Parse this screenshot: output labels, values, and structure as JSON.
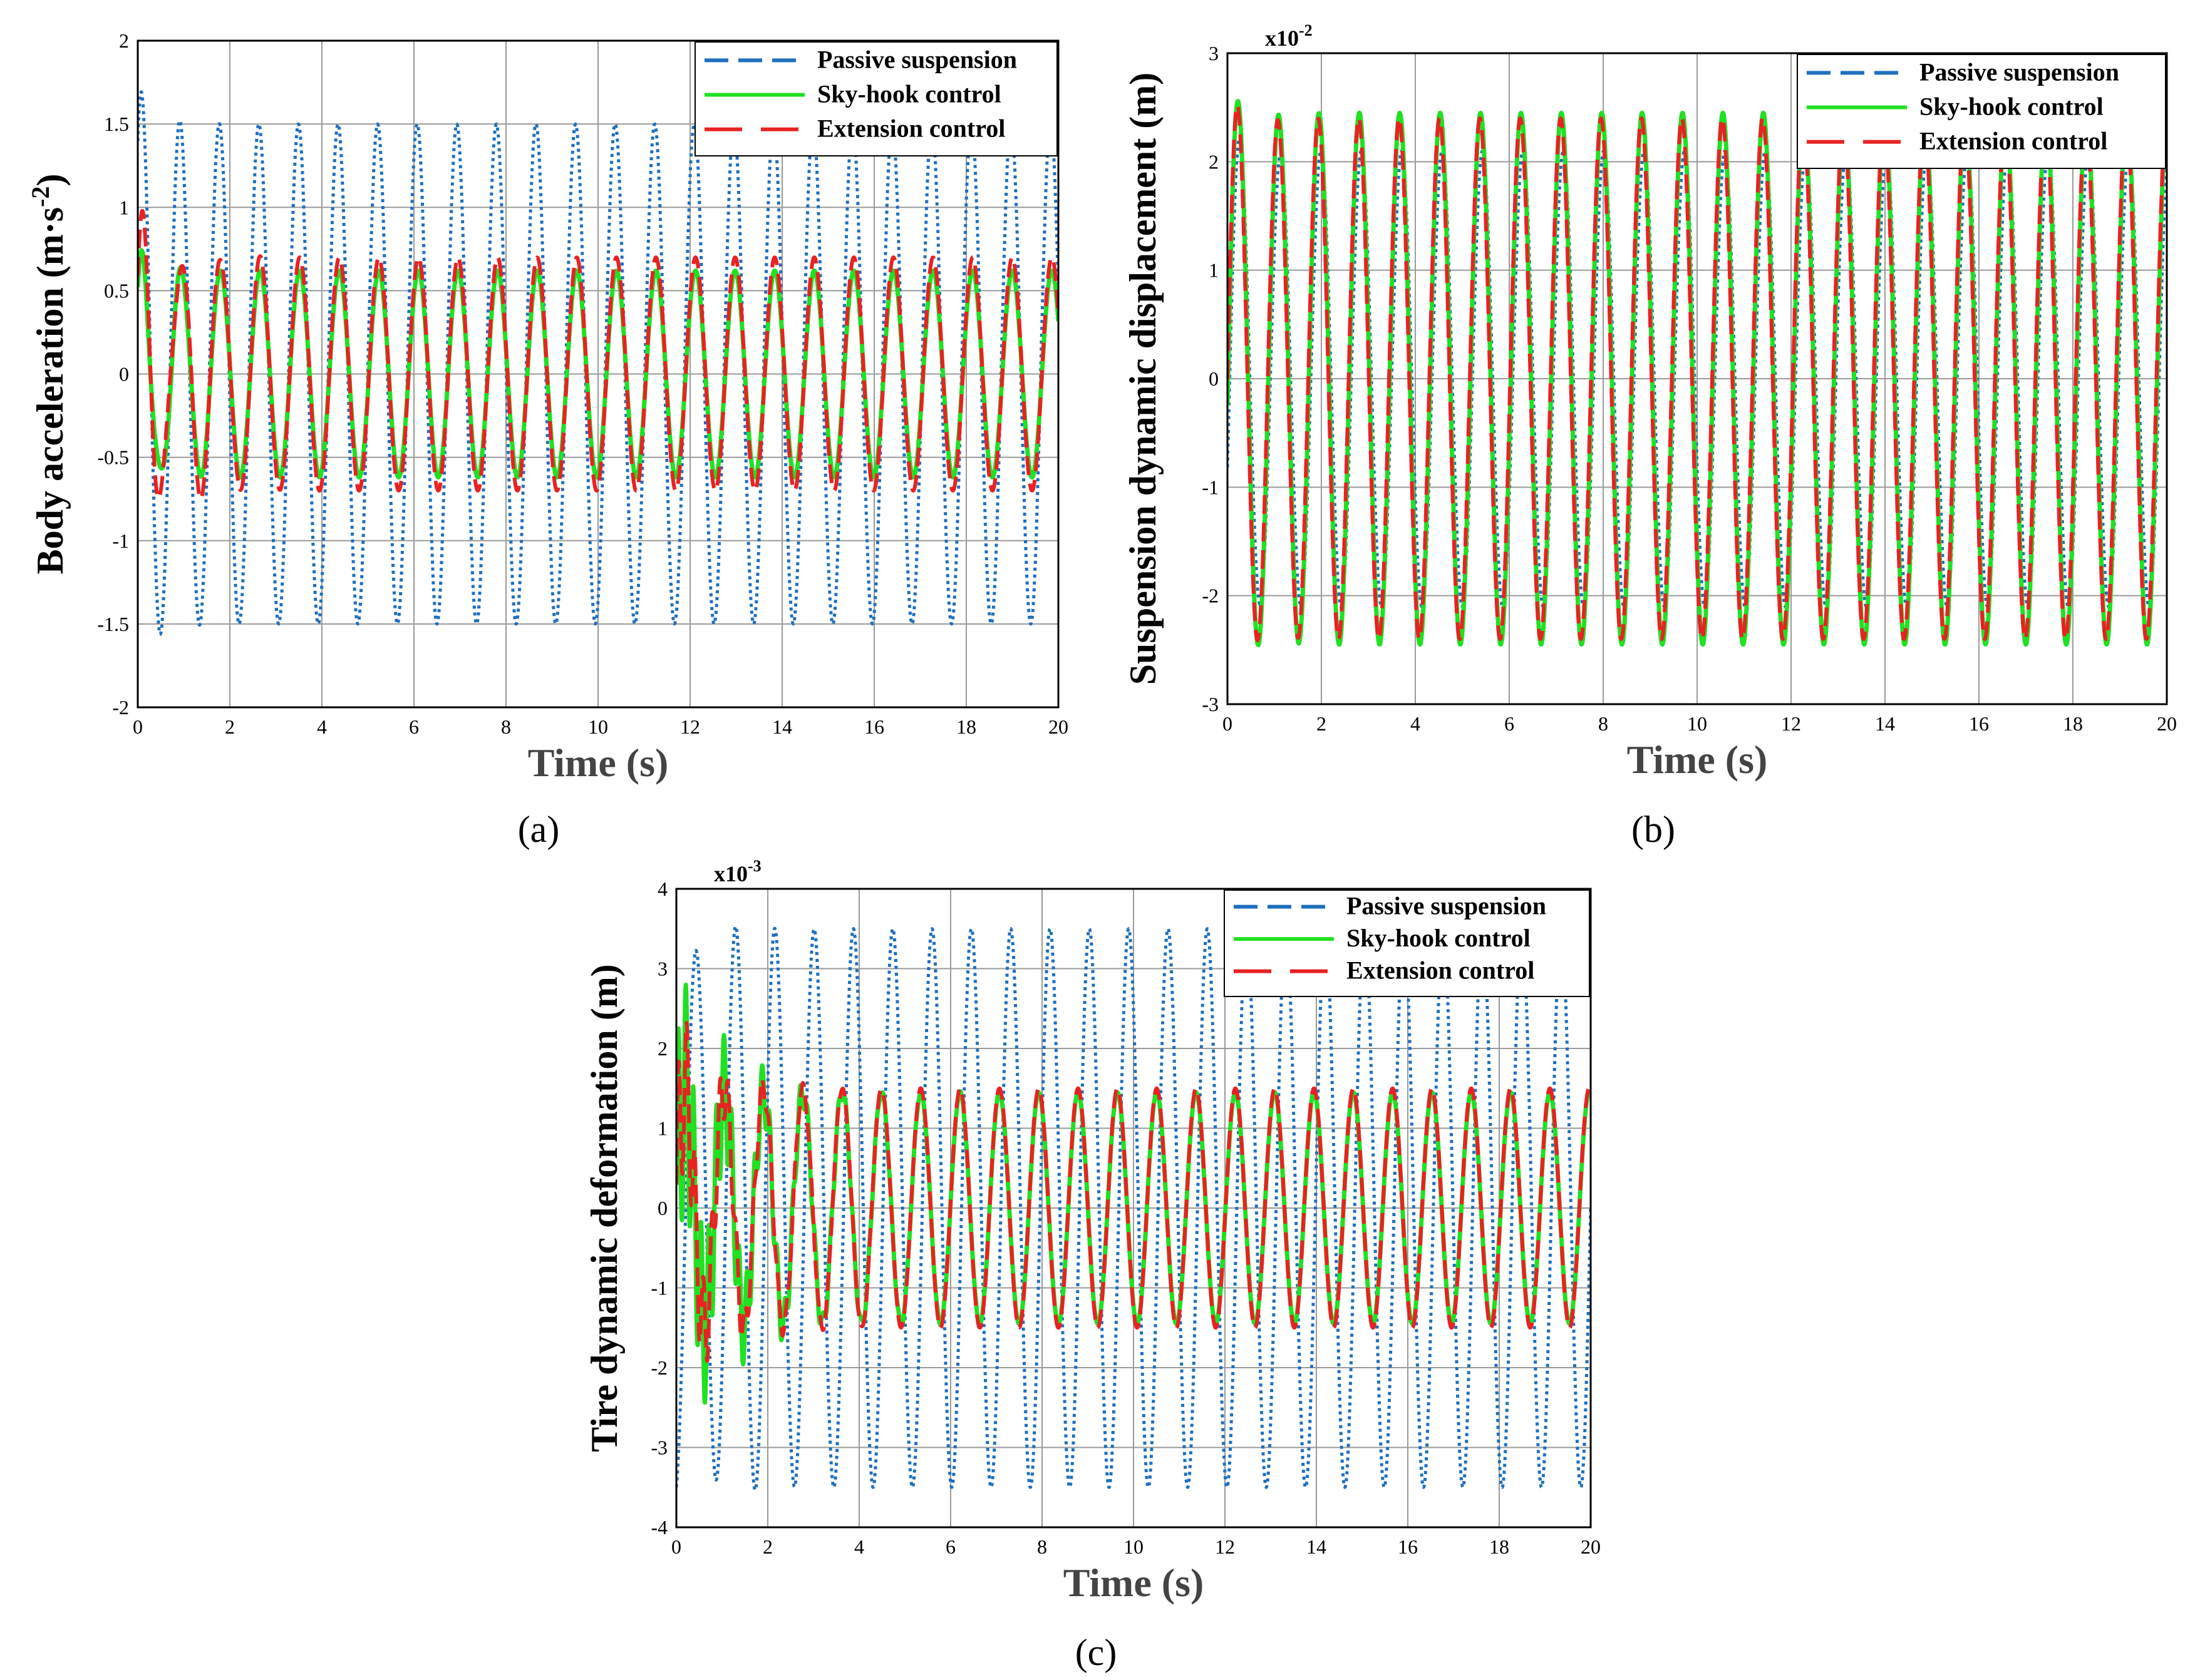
{
  "series_styles": [
    {
      "name": "Passive suspension",
      "color": "#1f6fbf",
      "dash": "5,6",
      "width": 5
    },
    {
      "name": "Sky-hook control",
      "color": "#22e022",
      "dash": "",
      "width": 7
    },
    {
      "name": "Extension control",
      "color": "#e82222",
      "dash": "30,14",
      "width": 6
    }
  ],
  "chart_data": [
    {
      "id": "a",
      "type": "line",
      "caption": "(a)",
      "xlabel": "Time (s)",
      "ylabel_main": "Body acceleration (m·s",
      "ylabel_sup": "-2",
      "ylabel_end": ")",
      "multiplier_base": "",
      "multiplier_exp": "",
      "xlim": [
        0,
        20
      ],
      "ylim": [
        -2,
        2
      ],
      "xticks": [
        0,
        2,
        4,
        6,
        8,
        10,
        12,
        14,
        16,
        18,
        20
      ],
      "yticks": [
        -2,
        -1.5,
        -1,
        -0.5,
        0,
        0.5,
        1,
        1.5,
        2
      ],
      "xtick_labels": [
        "0",
        "2",
        "4",
        "6",
        "8",
        "10",
        "12",
        "14",
        "16",
        "18",
        "20"
      ],
      "ytick_labels": [
        "-2",
        "-1.5",
        "-1",
        "-0.5",
        "0",
        "0.5",
        "1",
        "1.5",
        "2"
      ],
      "legend_position": "top-right",
      "series": [
        {
          "name": "Passive suspension",
          "amplitude": 1.5,
          "period_s": 0.86,
          "phase_rad": 1.2,
          "transient_amp": 0.5,
          "transient_decay_s": 0.35,
          "transient_freq_hz": 1.2
        },
        {
          "name": "Sky-hook control",
          "amplitude": 0.62,
          "period_s": 0.86,
          "phase_rad": 1.0,
          "transient_amp": 0.15,
          "transient_decay_s": 0.5,
          "transient_freq_hz": 2.5
        },
        {
          "name": "Extension control",
          "amplitude": 0.7,
          "period_s": 0.86,
          "phase_rad": 1.0,
          "transient_amp": 0.35,
          "transient_decay_s": 0.7,
          "transient_freq_hz": 2.0
        }
      ]
    },
    {
      "id": "b",
      "type": "line",
      "caption": "(b)",
      "xlabel": "Time (s)",
      "ylabel_main": "Suspension dynamic displacement (m)",
      "ylabel_sup": "",
      "ylabel_end": "",
      "multiplier_base": "x10",
      "multiplier_exp": "-2",
      "xlim": [
        0,
        20
      ],
      "ylim": [
        -3,
        3
      ],
      "xticks": [
        0,
        2,
        4,
        6,
        8,
        10,
        12,
        14,
        16,
        18,
        20
      ],
      "yticks": [
        -3,
        -2,
        -1,
        0,
        1,
        2,
        3
      ],
      "xtick_labels": [
        "0",
        "2",
        "4",
        "6",
        "8",
        "10",
        "12",
        "14",
        "16",
        "18",
        "20"
      ],
      "ytick_labels": [
        "-3",
        "-2",
        "-1",
        "0",
        "1",
        "2",
        "3"
      ],
      "legend_position": "top-right",
      "series": [
        {
          "name": "Passive suspension",
          "amplitude": 2.1,
          "period_s": 0.86,
          "phase_rad": -0.4,
          "transient_amp": 0.3,
          "transient_decay_s": 0.5,
          "transient_freq_hz": 1.5
        },
        {
          "name": "Sky-hook control",
          "amplitude": 2.45,
          "period_s": 0.86,
          "phase_rad": -0.1,
          "transient_amp": 0.2,
          "transient_decay_s": 0.5,
          "transient_freq_hz": 1.5
        },
        {
          "name": "Extension control",
          "amplitude": 2.4,
          "period_s": 0.86,
          "phase_rad": 0.0,
          "transient_amp": 0.2,
          "transient_decay_s": 0.5,
          "transient_freq_hz": 1.5
        }
      ]
    },
    {
      "id": "c",
      "type": "line",
      "caption": "(c)",
      "xlabel": "Time (s)",
      "ylabel_main": "Tire dynamic deformation (m)",
      "ylabel_sup": "",
      "ylabel_end": "",
      "multiplier_base": "x10",
      "multiplier_exp": "-3",
      "xlim": [
        0,
        20
      ],
      "ylim": [
        -4,
        4
      ],
      "xticks": [
        0,
        2,
        4,
        6,
        8,
        10,
        12,
        14,
        16,
        18,
        20
      ],
      "yticks": [
        -4,
        -3,
        -2,
        -1,
        0,
        1,
        2,
        3,
        4
      ],
      "xtick_labels": [
        "0",
        "2",
        "4",
        "6",
        "8",
        "10",
        "12",
        "14",
        "16",
        "18",
        "20"
      ],
      "ytick_labels": [
        "-4",
        "-3",
        "-2",
        "-1",
        "0",
        "1",
        "2",
        "3",
        "4"
      ],
      "legend_position": "top-right",
      "series": [
        {
          "name": "Passive suspension",
          "amplitude": 3.5,
          "period_s": 0.86,
          "phase_rad": -1.6,
          "transient_amp": 0.6,
          "transient_decay_s": 0.6,
          "transient_freq_hz": 1.6
        },
        {
          "name": "Sky-hook control",
          "amplitude": 1.45,
          "period_s": 0.86,
          "phase_rad": 0.2,
          "transient_amp": 1.6,
          "transient_decay_s": 1.3,
          "transient_freq_hz": 6.0
        },
        {
          "name": "Extension control",
          "amplitude": 1.5,
          "period_s": 0.86,
          "phase_rad": 0.2,
          "transient_amp": 1.1,
          "transient_decay_s": 1.0,
          "transient_freq_hz": 5.5
        }
      ]
    }
  ]
}
